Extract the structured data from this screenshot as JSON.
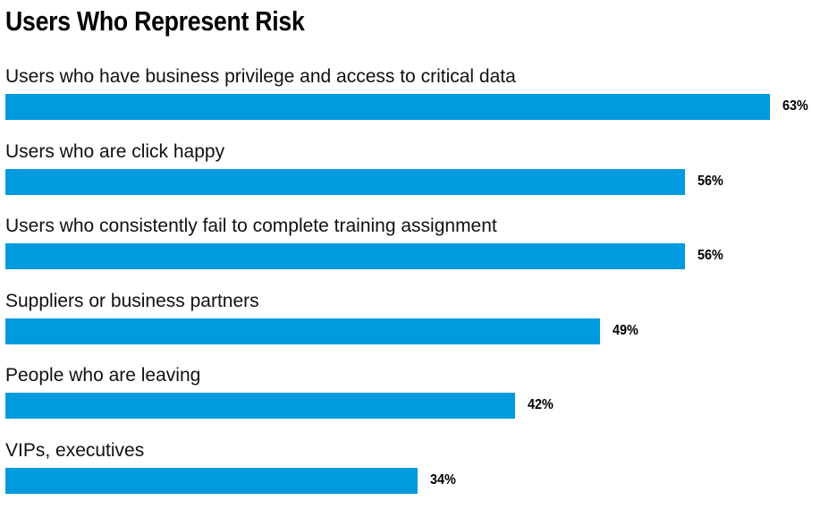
{
  "chart_data": {
    "type": "bar",
    "orientation": "horizontal",
    "title": "Users Who Represent Risk",
    "categories": [
      "Users who have business privilege and access to critical data",
      "Users who are click happy",
      "Users who consistently fail to complete training assignment",
      "Suppliers or business partners",
      "People who are leaving",
      "VIPs, executives"
    ],
    "values": [
      63,
      56,
      56,
      49,
      42,
      34
    ],
    "value_labels": [
      "63%",
      "56%",
      "56%",
      "49%",
      "42%",
      "34%"
    ],
    "unit": "%",
    "xlim": [
      0,
      100
    ],
    "grid": false,
    "legend": "none",
    "colors": {
      "bar": "#009ADE",
      "text": "#000000"
    }
  }
}
